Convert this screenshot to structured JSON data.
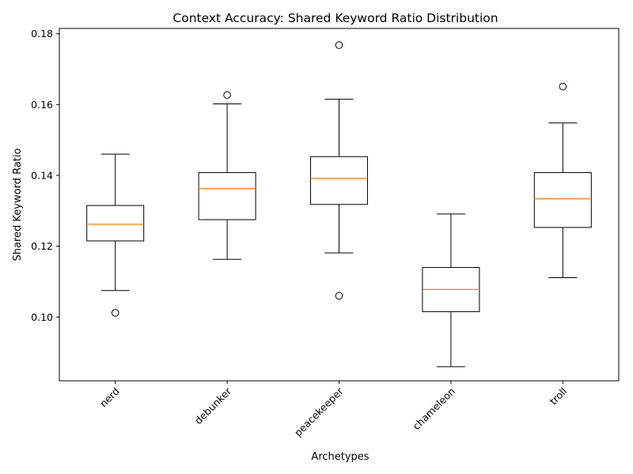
{
  "chart_data": {
    "type": "box",
    "title": "Context Accuracy: Shared Keyword Ratio Distribution",
    "xlabel": "Archetypes",
    "ylabel": "Shared Keyword Ratio",
    "ylim": [
      0.082,
      0.1815
    ],
    "yticks": [
      0.1,
      0.12,
      0.14,
      0.16,
      0.18
    ],
    "ytick_labels": [
      "0.10",
      "0.12",
      "0.14",
      "0.16",
      "0.18"
    ],
    "categories": [
      "nerd",
      "debunker",
      "peacekeeper",
      "chameleon",
      "troll"
    ],
    "boxes": [
      {
        "whisker_low": 0.1075,
        "q1": 0.1215,
        "median": 0.1262,
        "q3": 0.1315,
        "whisker_high": 0.146,
        "outliers": [
          0.1012
        ]
      },
      {
        "whisker_low": 0.1163,
        "q1": 0.1275,
        "median": 0.1363,
        "q3": 0.1408,
        "whisker_high": 0.1602,
        "outliers": [
          0.1627
        ]
      },
      {
        "whisker_low": 0.1181,
        "q1": 0.1318,
        "median": 0.1392,
        "q3": 0.1453,
        "whisker_high": 0.1615,
        "outliers": [
          0.1768,
          0.106
        ]
      },
      {
        "whisker_low": 0.086,
        "q1": 0.1015,
        "median": 0.1078,
        "q3": 0.114,
        "whisker_high": 0.1291,
        "outliers": []
      },
      {
        "whisker_low": 0.1111,
        "q1": 0.1253,
        "median": 0.1334,
        "q3": 0.1408,
        "whisker_high": 0.1548,
        "outliers": [
          0.1651
        ]
      }
    ],
    "colors": {
      "box": "#000000",
      "median": "#ff7f0e",
      "background": "#ffffff"
    },
    "grid": false,
    "xtick_rotation_deg": 45
  }
}
